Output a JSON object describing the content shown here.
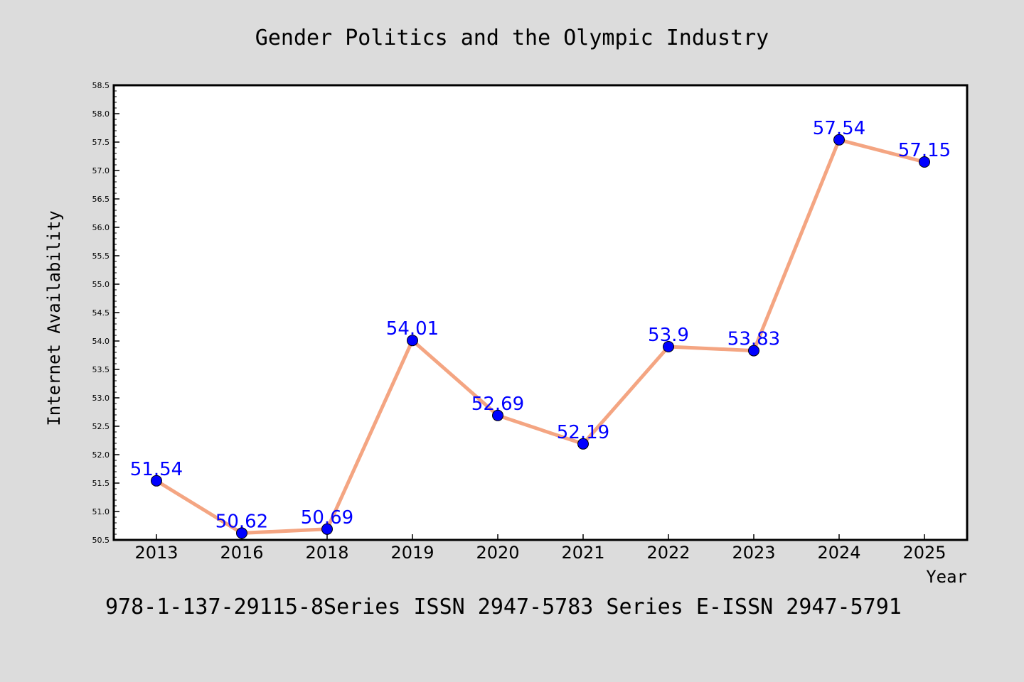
{
  "chart_data": {
    "type": "line",
    "title": "Gender Politics and the Olympic Industry",
    "xlabel": "Year",
    "ylabel": "Internet Availability",
    "categories": [
      "2013",
      "2016",
      "2018",
      "2019",
      "2020",
      "2021",
      "2022",
      "2023",
      "2024",
      "2025"
    ],
    "series": [
      {
        "values": [
          51.54,
          50.62,
          50.69,
          54.01,
          52.69,
          52.19,
          53.9,
          53.83,
          57.54,
          57.15
        ],
        "labels": [
          "51.54",
          "50.62",
          "50.69",
          "54.01",
          "52.69",
          "52.19",
          "53.9",
          "53.83",
          "57.54",
          "57.15"
        ]
      }
    ],
    "ylim": [
      50.5,
      58.5
    ],
    "yticks": [
      "50.5",
      "51.0",
      "51.5",
      "52.0",
      "52.5",
      "53.0",
      "53.5",
      "54.0",
      "54.5",
      "55.0",
      "55.5",
      "56.0",
      "56.5",
      "57.0",
      "57.5",
      "58.0",
      "58.5"
    ],
    "grid": false,
    "line_color": "#f4a582",
    "marker_color": "#0000ff",
    "label_color": "#0000ff",
    "background_color": "#dcdcdc",
    "plot_background_color": "#ffffff"
  },
  "footer_text": "978-1-137-29115-8Series ISSN 2947-5783 Series E-ISSN 2947-5791"
}
